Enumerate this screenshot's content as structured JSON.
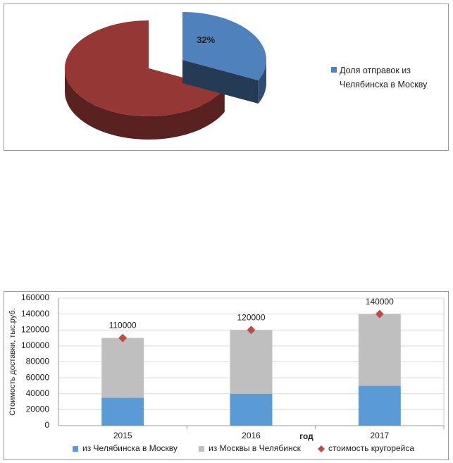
{
  "chart_data": [
    {
      "type": "pie",
      "categories": [
        "Доля отправок из Челябинска в Москву",
        null
      ],
      "values": [
        32,
        68
      ],
      "value_labels": [
        "32%",
        null
      ],
      "colors": [
        "#4f81bd",
        "#953735"
      ],
      "legend": "right"
    },
    {
      "type": "bar",
      "stacked": true,
      "categories": [
        "2015",
        "2016",
        "2017"
      ],
      "x_label": "год",
      "y_label": "Стоимость доставки, тыс.руб.",
      "series": [
        {
          "name": "из Челябинска в Москву",
          "color": "#5b9bd5",
          "values": [
            35000,
            40000,
            50000
          ]
        },
        {
          "name": "из Москвы в Челябинск",
          "color": "#bfbfbf",
          "values": [
            75000,
            80000,
            90000
          ]
        },
        {
          "name": "стоимость кругорейса",
          "color": "#be4b48",
          "type": "scatter",
          "marker": "diamond",
          "data_labels": true,
          "values": [
            110000,
            120000,
            140000
          ]
        }
      ],
      "ylim": [
        0,
        160000
      ],
      "yticks": [
        0,
        20000,
        40000,
        60000,
        80000,
        100000,
        120000,
        140000,
        160000
      ],
      "grid": true,
      "legend": "bottom"
    }
  ]
}
